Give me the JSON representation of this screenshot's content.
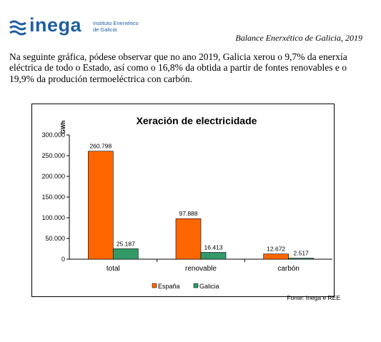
{
  "header": {
    "logo_word": "inega",
    "logo_sub_line1": "Instituto Enerxético",
    "logo_sub_line2": "de Galicia",
    "doc_title": "Balance Enerxético de Galicia, 2019",
    "brand_color": "#1f5fa3"
  },
  "paragraph": "Na seguinte gráfica, pódese observar que no ano 2019, Galicia xerou o 9,7% da enerxía eléctrica de todo o Estado, así como o 16,8% da obtida a partir de fontes renovables e o 19,9% da produción termoeléctrica con carbón.",
  "chart_data": {
    "type": "bar",
    "title": "Xeración de electricidade",
    "ylabel": "GWh",
    "xlabel": "",
    "ylim": [
      0,
      300000
    ],
    "yticks": [
      0,
      50000,
      100000,
      150000,
      200000,
      250000,
      300000
    ],
    "ytick_labels": [
      "0",
      "50.000",
      "100.000",
      "150.000",
      "200.000",
      "250.000",
      "300.000"
    ],
    "categories": [
      "total",
      "renovable",
      "carbón"
    ],
    "series": [
      {
        "name": "España",
        "color": "#ff6600",
        "values": [
          260798,
          97888,
          12672
        ],
        "labels": [
          "260.798",
          "97.888",
          "12.672"
        ]
      },
      {
        "name": "Galicia",
        "color": "#339966",
        "values": [
          25187,
          16413,
          2517
        ],
        "labels": [
          "25.187",
          "16.413",
          "2.517"
        ]
      }
    ],
    "legend_position": "bottom",
    "grid": false
  },
  "source": "Fonte: Inega e REE"
}
